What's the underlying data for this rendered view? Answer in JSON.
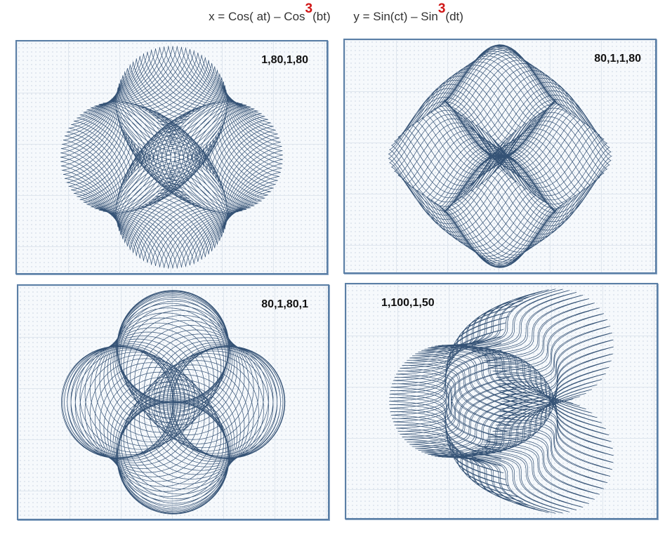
{
  "header": {
    "x_formula_prefix": "x = Cos( at) – Cos",
    "x_formula_exp": "3",
    "x_formula_suffix": "(bt)",
    "y_formula_prefix": "y = Sin(ct) – Sin",
    "y_formula_exp": "3",
    "y_formula_suffix": "(dt)"
  },
  "colors": {
    "curve": "#1f3f66",
    "exponent": "#d01616",
    "panel_border": "#5b7fa6",
    "grid": "#dfe6ee"
  },
  "chart_data": [
    {
      "type": "line",
      "label": "1,80,1,80",
      "params": {
        "a": 1,
        "b": 80,
        "c": 1,
        "d": 80
      },
      "xlim": [
        -2,
        2
      ],
      "ylim": [
        -2,
        2
      ],
      "grid": true
    },
    {
      "type": "line",
      "label": "80,1,1,80",
      "params": {
        "a": 80,
        "b": 1,
        "c": 1,
        "d": 80
      },
      "xlim": [
        -2,
        2
      ],
      "ylim": [
        -2,
        2
      ],
      "grid": true
    },
    {
      "type": "line",
      "label": "80,1,80,1",
      "params": {
        "a": 80,
        "b": 1,
        "c": 80,
        "d": 1
      },
      "xlim": [
        -2,
        2
      ],
      "ylim": [
        -2,
        2
      ],
      "grid": true
    },
    {
      "type": "line",
      "label": "1,100,1,50",
      "params": {
        "a": 1,
        "b": 100,
        "c": 1,
        "d": 50
      },
      "xlim": [
        -2,
        2
      ],
      "ylim": [
        -2,
        2
      ],
      "grid": true
    }
  ]
}
